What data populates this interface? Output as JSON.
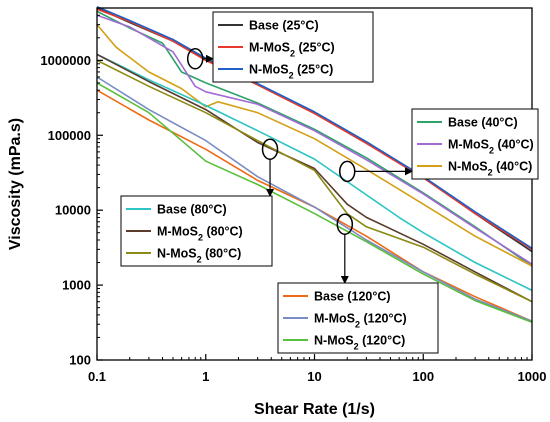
{
  "chart_data": {
    "type": "line",
    "xlabel": "Shear Rate (1/s)",
    "ylabel": "Viscosity (mPa.s)",
    "x_scale": "log",
    "y_scale": "log",
    "xlim": [
      0.1,
      1000
    ],
    "ylim": [
      100,
      5000000
    ],
    "x_ticks": [
      "0.1",
      "1",
      "10",
      "100",
      "1000"
    ],
    "y_ticks": [
      "100",
      "1000",
      "10000",
      "100000",
      "1000000"
    ],
    "grid": false,
    "series": [
      {
        "name": "Base (25°C)",
        "group": 0,
        "color": "#333333",
        "points": [
          [
            0.1,
            5000000
          ],
          [
            0.2,
            3200000
          ],
          [
            0.5,
            1800000
          ],
          [
            1,
            1050000
          ],
          [
            3,
            480000
          ],
          [
            10,
            200000
          ],
          [
            30,
            80000
          ],
          [
            100,
            28000
          ],
          [
            300,
            9000
          ],
          [
            1000,
            2800
          ]
        ]
      },
      {
        "name": "M-MoS2 (25°C)",
        "group": 0,
        "color": "#e8392c",
        "points": [
          [
            0.1,
            4800000
          ],
          [
            0.2,
            3300000
          ],
          [
            0.5,
            1800000
          ],
          [
            1,
            1000000
          ],
          [
            3,
            470000
          ],
          [
            10,
            195000
          ],
          [
            30,
            78000
          ],
          [
            100,
            27000
          ],
          [
            300,
            9000
          ],
          [
            1000,
            3000
          ]
        ]
      },
      {
        "name": "N-MoS2 (25°C)",
        "group": 0,
        "color": "#2160c4",
        "points": [
          [
            0.1,
            5200000
          ],
          [
            0.2,
            3400000
          ],
          [
            0.5,
            1900000
          ],
          [
            1,
            1070000
          ],
          [
            3,
            490000
          ],
          [
            10,
            205000
          ],
          [
            30,
            82000
          ],
          [
            100,
            28000
          ],
          [
            300,
            9500
          ],
          [
            1000,
            3100
          ]
        ]
      },
      {
        "name": "Base (40°C)",
        "group": 1,
        "color": "#2ea36a",
        "points": [
          [
            0.1,
            4500000
          ],
          [
            0.2,
            2700000
          ],
          [
            0.4,
            1700000
          ],
          [
            0.6,
            700000
          ],
          [
            1,
            500000
          ],
          [
            3,
            270000
          ],
          [
            10,
            120000
          ],
          [
            30,
            50000
          ],
          [
            100,
            17000
          ],
          [
            300,
            6000
          ],
          [
            1000,
            1800
          ]
        ]
      },
      {
        "name": "M-MoS2 (40°C)",
        "group": 1,
        "color": "#a36ad6",
        "points": [
          [
            0.1,
            4000000
          ],
          [
            0.2,
            2800000
          ],
          [
            0.5,
            1300000
          ],
          [
            0.8,
            450000
          ],
          [
            1,
            380000
          ],
          [
            3,
            260000
          ],
          [
            10,
            115000
          ],
          [
            30,
            47000
          ],
          [
            100,
            16500
          ],
          [
            300,
            5800
          ],
          [
            1000,
            1900
          ]
        ]
      },
      {
        "name": "N-MoS2 (40°C)",
        "group": 1,
        "color": "#d4a017",
        "points": [
          [
            0.1,
            3000000
          ],
          [
            0.15,
            1500000
          ],
          [
            0.3,
            700000
          ],
          [
            0.6,
            420000
          ],
          [
            1,
            240000
          ],
          [
            1.3,
            280000
          ],
          [
            3,
            200000
          ],
          [
            10,
            90000
          ],
          [
            30,
            35000
          ],
          [
            100,
            12000
          ],
          [
            300,
            4500
          ],
          [
            1000,
            1800
          ]
        ]
      },
      {
        "name": "Base (80°C)",
        "group": 2,
        "color": "#2cc4c4",
        "points": [
          [
            0.1,
            1200000
          ],
          [
            0.3,
            550000
          ],
          [
            1,
            250000
          ],
          [
            3,
            115000
          ],
          [
            10,
            48000
          ],
          [
            30,
            16000
          ],
          [
            60,
            8000
          ],
          [
            100,
            5000
          ],
          [
            300,
            2000
          ],
          [
            1000,
            850
          ]
        ]
      },
      {
        "name": "M-MoS2 (80°C)",
        "group": 2,
        "color": "#5a3c2c",
        "points": [
          [
            0.1,
            1200000
          ],
          [
            0.3,
            520000
          ],
          [
            1,
            220000
          ],
          [
            3,
            80000
          ],
          [
            10,
            36000
          ],
          [
            20,
            12000
          ],
          [
            30,
            8000
          ],
          [
            100,
            3500
          ],
          [
            300,
            1500
          ],
          [
            1000,
            600
          ]
        ]
      },
      {
        "name": "N-MoS2 (80°C)",
        "group": 2,
        "color": "#8a8a14",
        "points": [
          [
            0.1,
            1000000
          ],
          [
            0.3,
            450000
          ],
          [
            1,
            200000
          ],
          [
            3,
            85000
          ],
          [
            10,
            34000
          ],
          [
            20,
            9000
          ],
          [
            30,
            6000
          ],
          [
            100,
            3200
          ],
          [
            300,
            1400
          ],
          [
            1000,
            600
          ]
        ]
      },
      {
        "name": "Base (120°C)",
        "group": 3,
        "color": "#f06a14",
        "points": [
          [
            0.1,
            400000
          ],
          [
            0.3,
            160000
          ],
          [
            1,
            65000
          ],
          [
            3,
            25000
          ],
          [
            10,
            11000
          ],
          [
            30,
            4500
          ],
          [
            100,
            1500
          ],
          [
            300,
            700
          ],
          [
            1000,
            330
          ]
        ]
      },
      {
        "name": "M-MoS2 (120°C)",
        "group": 3,
        "color": "#7a8cc4",
        "points": [
          [
            0.1,
            600000
          ],
          [
            0.3,
            220000
          ],
          [
            1,
            85000
          ],
          [
            3,
            28000
          ],
          [
            10,
            11000
          ],
          [
            30,
            4000
          ],
          [
            100,
            1500
          ],
          [
            300,
            650
          ],
          [
            1000,
            330
          ]
        ]
      },
      {
        "name": "N-MoS2 (120°C)",
        "group": 3,
        "color": "#5abf3c",
        "points": [
          [
            0.1,
            500000
          ],
          [
            0.3,
            200000
          ],
          [
            1,
            45000
          ],
          [
            3,
            22000
          ],
          [
            10,
            9000
          ],
          [
            30,
            3800
          ],
          [
            100,
            1400
          ],
          [
            300,
            620
          ],
          [
            1000,
            320
          ]
        ]
      }
    ],
    "legends": [
      {
        "placement": "top-center",
        "entries": [
          {
            "main": "Base (25°C)",
            "color": "#333333"
          },
          {
            "main": "M-MoS",
            "sub": "2",
            "tail": " (25°C)",
            "color": "#e8392c"
          },
          {
            "main": "N-MoS",
            "sub": "2",
            "tail": " (25°C)",
            "color": "#2160c4"
          }
        ]
      },
      {
        "placement": "right-middle",
        "entries": [
          {
            "main": "Base (40°C)",
            "color": "#2ea36a"
          },
          {
            "main": "M-MoS",
            "sub": "2",
            "tail": " (40°C)",
            "color": "#a36ad6"
          },
          {
            "main": "N-MoS",
            "sub": "2",
            "tail": " (40°C)",
            "color": "#d4a017"
          }
        ]
      },
      {
        "placement": "left-middle",
        "entries": [
          {
            "main": "Base (80°C)",
            "color": "#2cc4c4"
          },
          {
            "main": "M-MoS",
            "sub": "2",
            "tail": " (80°C)",
            "color": "#5a3c2c"
          },
          {
            "main": "N-MoS",
            "sub": "2",
            "tail": " (80°C)",
            "color": "#8a8a14"
          }
        ]
      },
      {
        "placement": "bottom-right",
        "entries": [
          {
            "main": "Base (120°C)",
            "color": "#f06a14"
          },
          {
            "main": "M-MoS",
            "sub": "2",
            "tail": " (120°C)",
            "color": "#7a8cc4"
          },
          {
            "main": "N-MoS",
            "sub": "2",
            "tail": " (120°C)",
            "color": "#5abf3c"
          }
        ]
      }
    ],
    "annotations": [
      {
        "group": 0,
        "at": [
          0.8,
          1050000
        ]
      },
      {
        "group": 1,
        "at": [
          20,
          33000
        ]
      },
      {
        "group": 2,
        "at": [
          3.9,
          65000
        ]
      },
      {
        "group": 3,
        "at": [
          19,
          6500
        ]
      }
    ]
  }
}
